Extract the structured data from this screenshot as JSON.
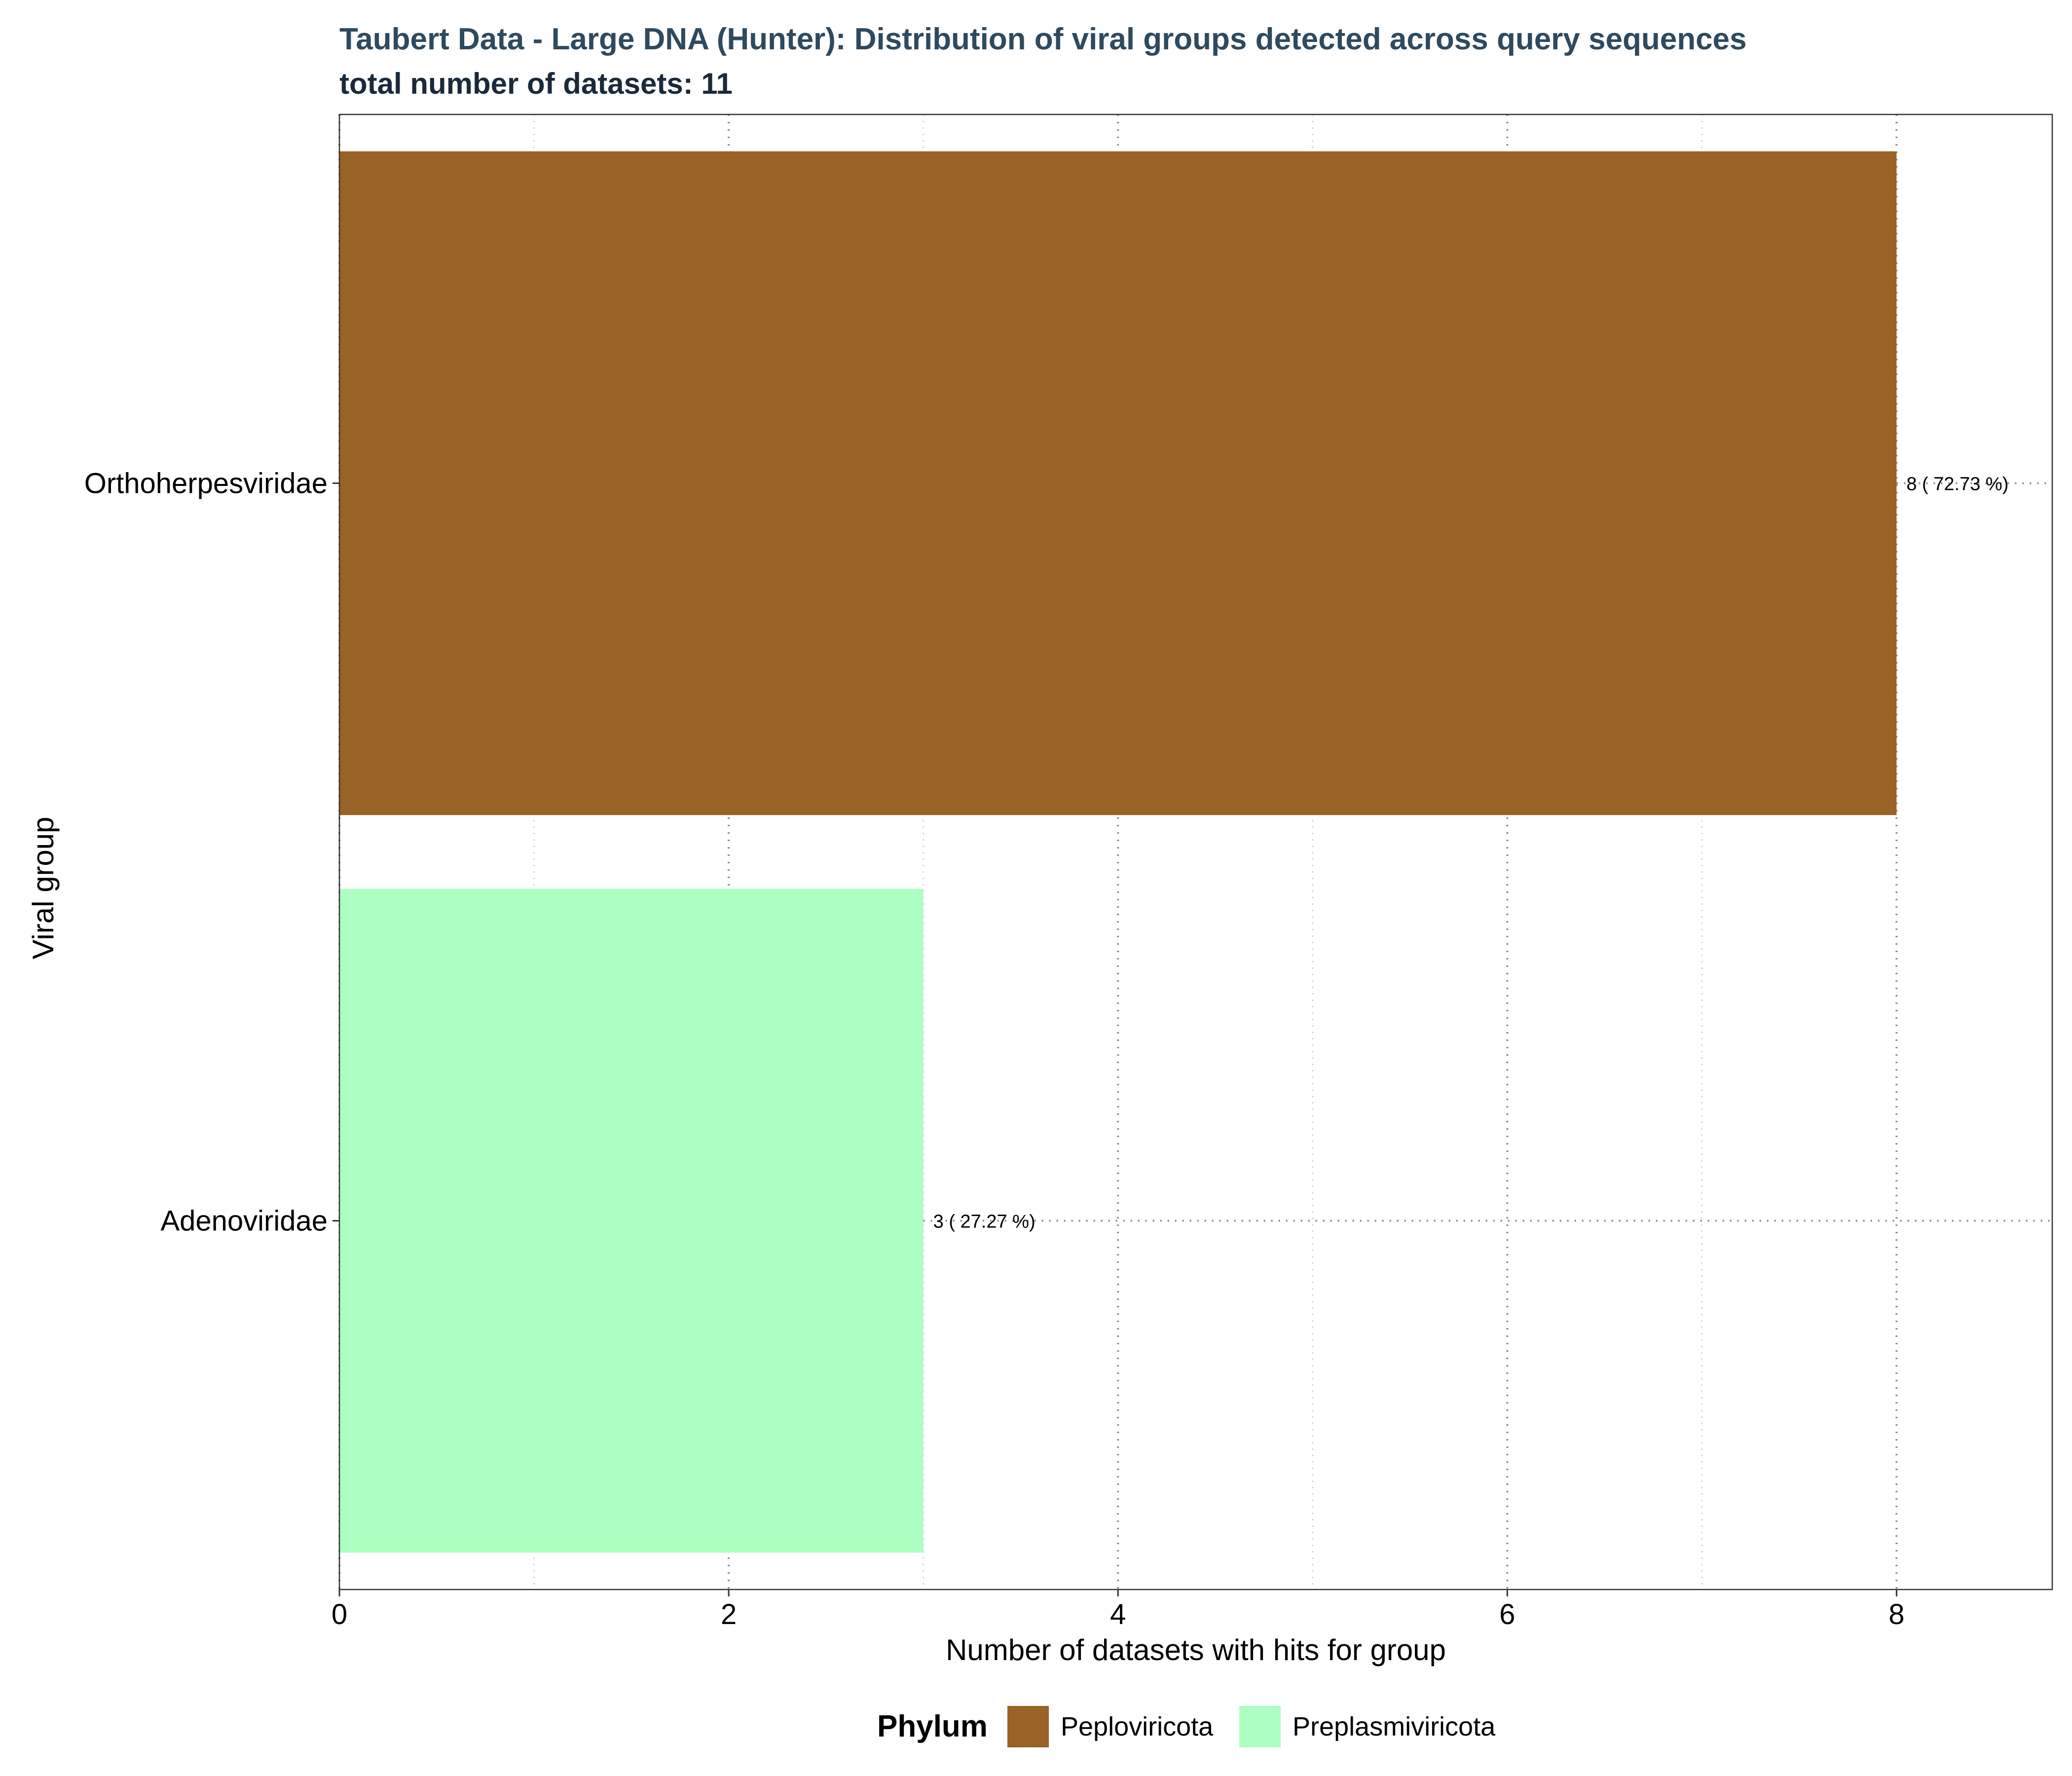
{
  "chart_data": {
    "type": "bar",
    "orientation": "horizontal",
    "title": "Taubert Data - Large DNA (Hunter): Distribution of viral groups detected across query sequences",
    "subtitle": "total number of datasets: 11",
    "xlabel": "Number of datasets with hits for group",
    "ylabel": "Viral group",
    "xlim": [
      0,
      8.8
    ],
    "x_ticks": [
      0,
      2,
      4,
      6,
      8
    ],
    "grid": "dotted",
    "categories": [
      "Adenoviridae",
      "Orthoherpesviridae"
    ],
    "values": [
      3,
      8
    ],
    "phylum": [
      "Preplasmiviricota",
      "Peploviricota"
    ],
    "data_labels": [
      "3  ( 27.27 %)",
      "8  ( 72.73 %)"
    ],
    "legend": {
      "title": "Phylum",
      "position": "bottom",
      "entries": [
        {
          "name": "Peploviricota",
          "color": "#996226"
        },
        {
          "name": "Preplasmiviricota",
          "color": "#adffc1"
        }
      ]
    },
    "colors": {
      "title": "#2e4a5e",
      "subtitle": "#1a2a3a"
    }
  }
}
